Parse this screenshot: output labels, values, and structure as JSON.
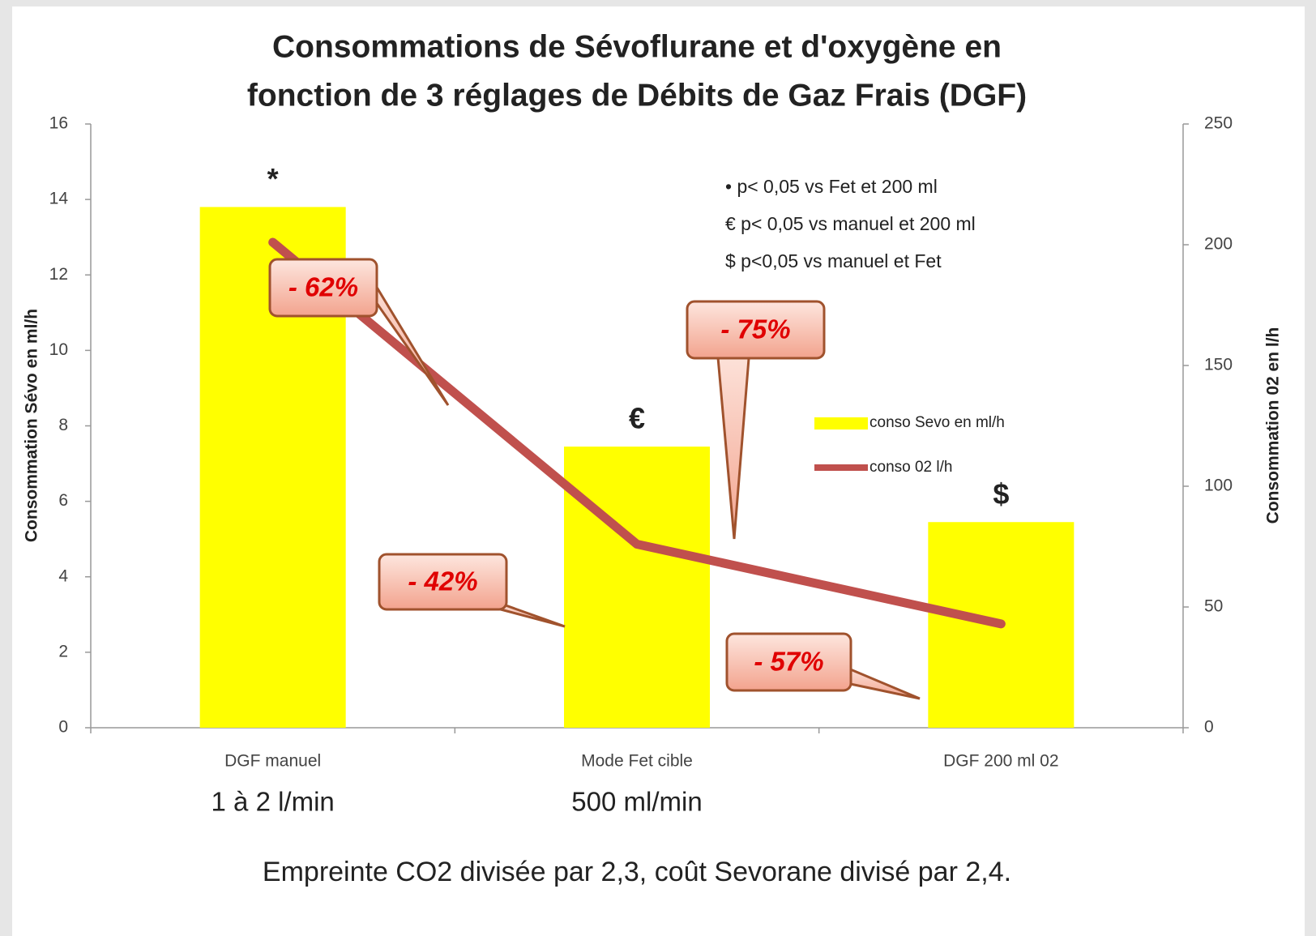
{
  "chart_data": {
    "type": "combo",
    "title": [
      "Consommations de Sévoflurane et d'oxygène en",
      "fonction de 3 réglages de Débits de Gaz Frais (DGF)"
    ],
    "categories": [
      "DGF manuel",
      "Mode Fet cible",
      "DGF 200 ml 02"
    ],
    "category_sublabels": [
      "1 à 2 l/min",
      "500 ml/min"
    ],
    "series": [
      {
        "name": "conso Sevo en ml/h",
        "type": "bar",
        "color": "#ffff00",
        "values": [
          13.8,
          7.45,
          5.45
        ]
      },
      {
        "name": "conso 02 l/h",
        "type": "line",
        "axis": "y2",
        "color": "#c0504d",
        "values": [
          201,
          76,
          43
        ]
      }
    ],
    "ylabel": "Consommation  Sévo en ml/h",
    "y2label": "Consommation 02 en l/h",
    "ylim": [
      0,
      16
    ],
    "yticks": [
      0,
      2,
      4,
      6,
      8,
      10,
      12,
      14,
      16
    ],
    "y2lim": [
      0,
      250
    ],
    "y2ticks": [
      0,
      50,
      100,
      150,
      200,
      250
    ],
    "bar_annotations": [
      "*",
      "€",
      "$"
    ],
    "notes": [
      "•   p< 0,05 vs Fet et 200 ml",
      "€ p< 0,05 vs manuel et 200 ml",
      "$ p<0,05 vs manuel et Fet"
    ],
    "callouts": [
      "- 62%",
      "- 75%",
      "- 42%",
      "- 57%"
    ],
    "caption": "Empreinte CO2 divisée par 2,3, coût Sevorane divisé par 2,4."
  }
}
